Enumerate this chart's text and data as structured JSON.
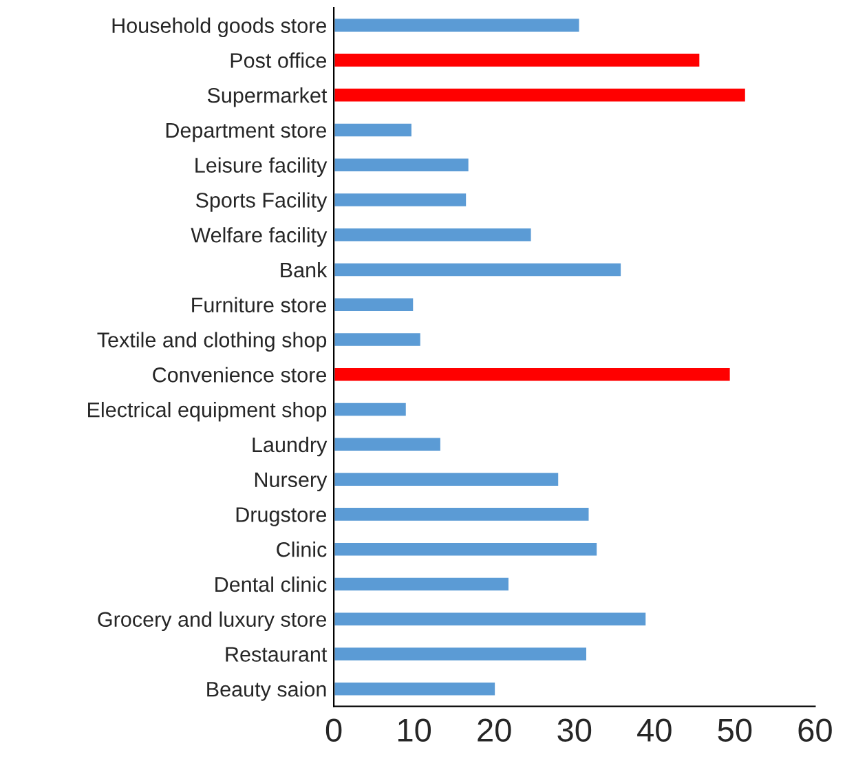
{
  "chart_data": {
    "type": "bar",
    "orientation": "horizontal",
    "categories": [
      "Household goods store",
      "Post office",
      "Supermarket",
      "Department store",
      "Leisure facility",
      "Sports Facility",
      "Welfare facility",
      "Bank",
      "Furniture store",
      "Textile and clothing shop",
      "Convenience store",
      "Electrical equipment shop",
      "Laundry",
      "Nursery",
      "Drugstore",
      "Clinic",
      "Dental clinic",
      "Grocery and luxury store",
      "Restaurant",
      "Beauty saion"
    ],
    "values": [
      30.7,
      45.7,
      51.4,
      9.8,
      16.9,
      16.6,
      24.7,
      35.9,
      10.0,
      10.9,
      49.5,
      9.1,
      13.4,
      28.1,
      31.9,
      32.9,
      21.9,
      39.0,
      31.6,
      20.2
    ],
    "colors": [
      "#5b9bd5",
      "#ff0000",
      "#ff0000",
      "#5b9bd5",
      "#5b9bd5",
      "#5b9bd5",
      "#5b9bd5",
      "#5b9bd5",
      "#5b9bd5",
      "#5b9bd5",
      "#ff0000",
      "#5b9bd5",
      "#5b9bd5",
      "#5b9bd5",
      "#5b9bd5",
      "#5b9bd5",
      "#5b9bd5",
      "#5b9bd5",
      "#5b9bd5",
      "#5b9bd5"
    ],
    "xlim": [
      0,
      60
    ],
    "xticks": [
      0,
      10,
      20,
      30,
      40,
      50,
      60
    ],
    "grid": false,
    "legend": false
  }
}
